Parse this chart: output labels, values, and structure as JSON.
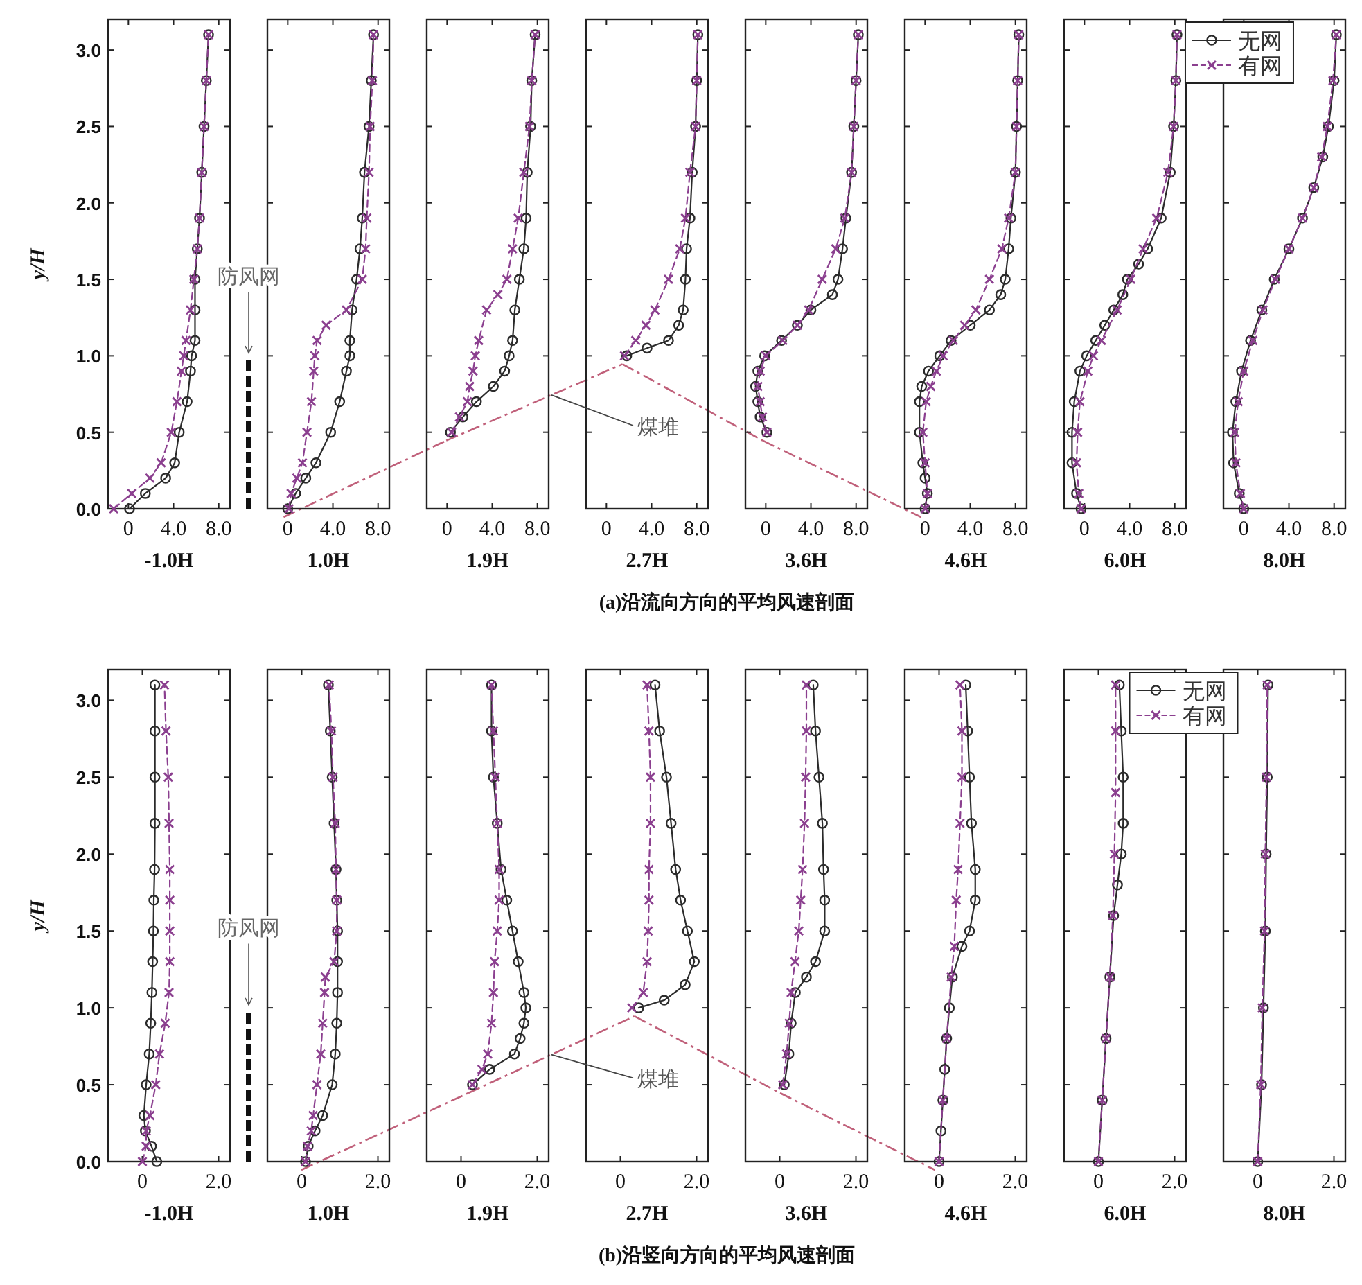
{
  "chart_data": [
    {
      "type": "line",
      "xlabel": "-1.0H",
      "ylabel": "y/H",
      "xlim": [
        -1.8,
        9.0
      ],
      "xticks": [
        {
          "value": 0,
          "label": "0"
        },
        {
          "value": 4,
          "label": "4.0"
        },
        {
          "value": 8,
          "label": "8.0"
        }
      ],
      "ylim": [
        0,
        3.2
      ],
      "yticks": [
        {
          "value": 0,
          "label": "0.0"
        },
        {
          "value": 0.5,
          "label": "0.5"
        },
        {
          "value": 1,
          "label": "1.0"
        },
        {
          "value": 1.5,
          "label": "1.5"
        },
        {
          "value": 2,
          "label": "2.0"
        },
        {
          "value": 2.5,
          "label": "2.5"
        },
        {
          "value": 3,
          "label": "3.0"
        }
      ],
      "annotations": [
        "(a)沿流向方向的平均风速剖面",
        "防风网"
      ],
      "series": [
        {
          "color": "#2b2b2b",
          "marker": "circle",
          "line_style": "solid",
          "x": [
            0.1,
            1.5,
            3.3,
            4.1,
            4.5,
            5.2,
            5.5,
            5.6,
            5.9,
            5.9,
            5.9,
            6.1,
            6.3,
            6.5,
            6.7,
            6.9,
            7.1
          ],
          "values": [
            0,
            0.1,
            0.2,
            0.3,
            0.5,
            0.7,
            0.9,
            1.0,
            1.1,
            1.3,
            1.5,
            1.7,
            1.9,
            2.2,
            2.5,
            2.8,
            3.1
          ]
        },
        {
          "color": "#8b3f8f",
          "marker": "cross",
          "line_style": "dashed",
          "x": [
            -1.3,
            0.3,
            1.9,
            2.9,
            3.8,
            4.3,
            4.7,
            4.9,
            5.1,
            5.5,
            5.8,
            6.1,
            6.3,
            6.5,
            6.7,
            6.9,
            7.1
          ],
          "values": [
            0,
            0.1,
            0.2,
            0.3,
            0.5,
            0.7,
            0.9,
            1.0,
            1.1,
            1.3,
            1.5,
            1.7,
            1.9,
            2.2,
            2.5,
            2.8,
            3.1
          ]
        }
      ]
    },
    {
      "type": "line",
      "xlabel": "1.0H",
      "tick_labels": "x",
      "xlim": [
        -1.8,
        9.0
      ],
      "xticks": [
        {
          "value": 0,
          "label": "0"
        },
        {
          "value": 4,
          "label": "4.0"
        },
        {
          "value": 8,
          "label": "8.0"
        }
      ],
      "ylim": [
        0,
        3.2
      ],
      "yticks": [
        0,
        0.5,
        1,
        1.5,
        2,
        2.5,
        3
      ],
      "series": [
        {
          "color": "#2b2b2b",
          "marker": "circle",
          "line_style": "solid",
          "x": [
            0,
            0.7,
            1.6,
            2.5,
            3.8,
            4.6,
            5.2,
            5.5,
            5.5,
            5.7,
            6.1,
            6.4,
            6.6,
            6.8,
            7.2,
            7.4,
            7.6
          ],
          "values": [
            0,
            0.1,
            0.2,
            0.3,
            0.5,
            0.7,
            0.9,
            1.0,
            1.1,
            1.3,
            1.5,
            1.7,
            1.9,
            2.2,
            2.5,
            2.8,
            3.1
          ]
        },
        {
          "color": "#8b3f8f",
          "marker": "cross",
          "line_style": "dashed",
          "x": [
            0.1,
            0.3,
            0.8,
            1.3,
            1.7,
            2.1,
            2.3,
            2.4,
            2.6,
            3.4,
            5.2,
            6.6,
            6.9,
            7.0,
            7.2,
            7.3,
            7.5,
            7.6
          ],
          "values": [
            0,
            0.1,
            0.2,
            0.3,
            0.5,
            0.7,
            0.9,
            1.0,
            1.1,
            1.2,
            1.3,
            1.5,
            1.7,
            1.9,
            2.2,
            2.5,
            2.8,
            3.1
          ]
        }
      ]
    },
    {
      "type": "line",
      "xlabel": "1.9H",
      "tick_labels": "x",
      "xlim": [
        -1.8,
        9.0
      ],
      "xticks": [
        {
          "value": 0,
          "label": "0"
        },
        {
          "value": 4,
          "label": "4.0"
        },
        {
          "value": 8,
          "label": "8.0"
        }
      ],
      "ylim": [
        0,
        3.2
      ],
      "yticks": [
        0,
        0.5,
        1,
        1.5,
        2,
        2.5,
        3
      ],
      "series": [
        {
          "color": "#2b2b2b",
          "marker": "circle",
          "line_style": "solid",
          "x": [
            0.3,
            1.4,
            2.6,
            4.1,
            5.1,
            5.5,
            5.8,
            6.0,
            6.4,
            6.8,
            7.0,
            7.1,
            7.4,
            7.5,
            7.8
          ],
          "values": [
            0.5,
            0.6,
            0.7,
            0.8,
            0.9,
            1.0,
            1.1,
            1.3,
            1.5,
            1.7,
            1.9,
            2.2,
            2.5,
            2.8,
            3.1
          ]
        },
        {
          "color": "#8b3f8f",
          "marker": "cross",
          "line_style": "dashed",
          "x": [
            0.4,
            1.1,
            1.8,
            2.0,
            2.3,
            2.5,
            2.8,
            3.5,
            4.5,
            5.3,
            5.8,
            6.3,
            6.8,
            7.3,
            7.5,
            7.8
          ],
          "values": [
            0.5,
            0.6,
            0.7,
            0.8,
            0.9,
            1.0,
            1.1,
            1.3,
            1.4,
            1.5,
            1.7,
            1.9,
            2.2,
            2.5,
            2.8,
            3.1
          ]
        }
      ]
    },
    {
      "type": "line",
      "xlabel": "2.7H",
      "tick_labels": "x",
      "xlim": [
        -1.8,
        9.0
      ],
      "xticks": [
        {
          "value": 0,
          "label": "0"
        },
        {
          "value": 4,
          "label": "4.0"
        },
        {
          "value": 8,
          "label": "8.0"
        }
      ],
      "ylim": [
        0,
        3.2
      ],
      "yticks": [
        0,
        0.5,
        1,
        1.5,
        2,
        2.5,
        3
      ],
      "annotations": [
        "煤堆"
      ],
      "series": [
        {
          "color": "#2b2b2b",
          "marker": "circle",
          "line_style": "solid",
          "x": [
            1.8,
            3.6,
            5.5,
            6.4,
            6.8,
            7.0,
            7.1,
            7.4,
            7.6,
            7.9,
            8.0,
            8.1
          ],
          "values": [
            1.0,
            1.05,
            1.1,
            1.2,
            1.3,
            1.5,
            1.7,
            1.9,
            2.2,
            2.5,
            2.8,
            3.1
          ]
        },
        {
          "color": "#8b3f8f",
          "marker": "cross",
          "line_style": "dashed",
          "x": [
            1.6,
            2.6,
            3.5,
            4.3,
            5.5,
            6.5,
            7.0,
            7.4,
            7.9,
            8.0,
            8.1
          ],
          "values": [
            1.0,
            1.1,
            1.2,
            1.3,
            1.5,
            1.7,
            1.9,
            2.2,
            2.5,
            2.8,
            3.1
          ]
        }
      ]
    },
    {
      "type": "line",
      "xlabel": "3.6H",
      "tick_labels": "x",
      "xlim": [
        -1.8,
        9.0
      ],
      "xticks": [
        {
          "value": 0,
          "label": "0"
        },
        {
          "value": 4,
          "label": "4.0"
        },
        {
          "value": 8,
          "label": "8.0"
        }
      ],
      "ylim": [
        0,
        3.2
      ],
      "yticks": [
        0,
        0.5,
        1,
        1.5,
        2,
        2.5,
        3
      ],
      "series": [
        {
          "color": "#2b2b2b",
          "marker": "circle",
          "line_style": "solid",
          "x": [
            0.1,
            -0.5,
            -0.7,
            -0.9,
            -0.7,
            -0.1,
            1.4,
            2.8,
            4.0,
            5.9,
            6.4,
            6.8,
            7.1,
            7.6,
            7.8,
            8.0,
            8.2
          ],
          "values": [
            0.5,
            0.6,
            0.7,
            0.8,
            0.9,
            1.0,
            1.1,
            1.2,
            1.3,
            1.4,
            1.5,
            1.7,
            1.9,
            2.2,
            2.5,
            2.8,
            3.1
          ]
        },
        {
          "color": "#8b3f8f",
          "marker": "cross",
          "line_style": "dashed",
          "x": [
            0.1,
            -0.3,
            -0.5,
            -0.7,
            -0.5,
            0.0,
            1.5,
            2.8,
            3.8,
            5.0,
            6.2,
            7.0,
            7.6,
            7.8,
            8.0,
            8.2
          ],
          "values": [
            0.5,
            0.6,
            0.7,
            0.8,
            0.9,
            1.0,
            1.1,
            1.2,
            1.3,
            1.5,
            1.7,
            1.9,
            2.2,
            2.5,
            2.8,
            3.1
          ]
        }
      ]
    },
    {
      "type": "line",
      "xlabel": "4.6H",
      "tick_labels": "x",
      "xlim": [
        -1.8,
        9.0
      ],
      "xticks": [
        {
          "value": 0,
          "label": "0"
        },
        {
          "value": 4,
          "label": "4.0"
        },
        {
          "value": 8,
          "label": "8.0"
        }
      ],
      "ylim": [
        0,
        3.2
      ],
      "yticks": [
        0,
        0.5,
        1,
        1.5,
        2,
        2.5,
        3
      ],
      "series": [
        {
          "color": "#2b2b2b",
          "marker": "circle",
          "line_style": "solid",
          "x": [
            0,
            0.2,
            0.0,
            -0.2,
            -0.5,
            -0.5,
            -0.3,
            0.3,
            1.3,
            2.3,
            4.0,
            5.7,
            6.7,
            7.1,
            7.4,
            7.6,
            8.0,
            8.1,
            8.2,
            8.3
          ],
          "values": [
            0,
            0.1,
            0.2,
            0.3,
            0.5,
            0.7,
            0.8,
            0.9,
            1.0,
            1.1,
            1.2,
            1.3,
            1.4,
            1.5,
            1.7,
            1.9,
            2.2,
            2.5,
            2.8,
            3.1
          ]
        },
        {
          "color": "#8b3f8f",
          "marker": "cross",
          "line_style": "dashed",
          "x": [
            0,
            0.2,
            0.0,
            -0.2,
            0.1,
            0.5,
            1.0,
            1.6,
            2.5,
            3.5,
            4.5,
            5.7,
            6.8,
            7.4,
            8.0,
            8.1,
            8.2,
            8.3
          ],
          "values": [
            0,
            0.1,
            0.3,
            0.5,
            0.7,
            0.8,
            0.9,
            1.0,
            1.1,
            1.2,
            1.3,
            1.5,
            1.7,
            1.9,
            2.2,
            2.5,
            2.8,
            3.1
          ]
        }
      ]
    },
    {
      "type": "line",
      "xlabel": "6.0H",
      "tick_labels": "x",
      "legend": "top right",
      "xlim": [
        -1.8,
        9.0
      ],
      "xticks": [
        {
          "value": 0,
          "label": "0"
        },
        {
          "value": 4,
          "label": "4.0"
        },
        {
          "value": 8,
          "label": "8.0"
        }
      ],
      "ylim": [
        0,
        3.2
      ],
      "yticks": [
        0,
        0.5,
        1,
        1.5,
        2,
        2.5,
        3
      ],
      "series": [
        {
          "name": "无网",
          "color": "#2b2b2b",
          "marker": "circle",
          "line_style": "solid",
          "x": [
            -0.3,
            -0.7,
            -1.1,
            -1.1,
            -0.9,
            -0.4,
            0.2,
            1.0,
            1.8,
            2.6,
            3.4,
            3.8,
            4.8,
            5.6,
            6.8,
            7.6,
            7.9,
            8.1,
            8.2
          ],
          "values": [
            0,
            0.1,
            0.3,
            0.5,
            0.7,
            0.9,
            1.0,
            1.1,
            1.2,
            1.3,
            1.4,
            1.5,
            1.6,
            1.7,
            1.9,
            2.2,
            2.5,
            2.8,
            3.1
          ]
        },
        {
          "name": "有网",
          "color": "#8b3f8f",
          "marker": "cross",
          "line_style": "dashed",
          "x": [
            -0.3,
            -0.5,
            -0.7,
            -0.6,
            -0.4,
            0.3,
            0.8,
            1.5,
            2.9,
            4.1,
            5.2,
            6.4,
            7.4,
            7.9,
            8.1,
            8.2
          ],
          "values": [
            0,
            0.1,
            0.3,
            0.5,
            0.7,
            0.9,
            1.0,
            1.1,
            1.3,
            1.5,
            1.7,
            1.9,
            2.2,
            2.5,
            2.8,
            3.1
          ]
        }
      ]
    },
    {
      "type": "line",
      "xlabel": "8.0H",
      "tick_labels": "x",
      "xlim": [
        -1.8,
        9.0
      ],
      "xticks": [
        {
          "value": 0,
          "label": "0"
        },
        {
          "value": 4,
          "label": "4.0"
        },
        {
          "value": 8,
          "label": "8.0"
        }
      ],
      "ylim": [
        0,
        3.2
      ],
      "yticks": [
        0,
        0.5,
        1,
        1.5,
        2,
        2.5,
        3
      ],
      "series": [
        {
          "color": "#2b2b2b",
          "marker": "circle",
          "line_style": "solid",
          "x": [
            0,
            -0.4,
            -0.9,
            -1.0,
            -0.7,
            -0.2,
            0.6,
            1.6,
            2.7,
            4.0,
            5.2,
            6.2,
            7.0,
            7.5,
            8.0,
            8.2
          ],
          "values": [
            0,
            0.1,
            0.3,
            0.5,
            0.7,
            0.9,
            1.1,
            1.3,
            1.5,
            1.7,
            1.9,
            2.1,
            2.3,
            2.5,
            2.8,
            3.1
          ]
        },
        {
          "color": "#8b3f8f",
          "marker": "cross",
          "line_style": "dashed",
          "x": [
            0,
            -0.3,
            -0.7,
            -0.8,
            -0.5,
            0.0,
            0.8,
            1.7,
            2.8,
            4.0,
            5.2,
            6.2,
            6.9,
            7.4,
            7.9,
            8.2
          ],
          "values": [
            0,
            0.1,
            0.3,
            0.5,
            0.7,
            0.9,
            1.1,
            1.3,
            1.5,
            1.7,
            1.9,
            2.1,
            2.3,
            2.5,
            2.8,
            3.1
          ]
        }
      ]
    },
    {
      "type": "line",
      "xlabel": "-1.0H",
      "ylabel": "y/H",
      "xlim": [
        -0.9,
        2.3
      ],
      "xticks": [
        {
          "value": 0,
          "label": "0"
        },
        {
          "value": 2,
          "label": "2.0"
        }
      ],
      "ylim": [
        0,
        3.2
      ],
      "yticks": [
        {
          "value": 0,
          "label": "0.0"
        },
        {
          "value": 0.5,
          "label": "0.5"
        },
        {
          "value": 1,
          "label": "1.0"
        },
        {
          "value": 1.5,
          "label": "1.5"
        },
        {
          "value": 2,
          "label": "2.0"
        },
        {
          "value": 2.5,
          "label": "2.5"
        },
        {
          "value": 3,
          "label": "3.0"
        }
      ],
      "annotations": [
        "(b)沿竖向方向的平均风速剖面",
        "防风网"
      ],
      "series": [
        {
          "color": "#2b2b2b",
          "marker": "circle",
          "line_style": "solid",
          "x": [
            0.38,
            0.24,
            0.08,
            0.04,
            0.1,
            0.18,
            0.22,
            0.25,
            0.27,
            0.29,
            0.3,
            0.32,
            0.33,
            0.33,
            0.33,
            0.33
          ],
          "values": [
            0,
            0.1,
            0.2,
            0.3,
            0.5,
            0.7,
            0.9,
            1.1,
            1.3,
            1.5,
            1.7,
            1.9,
            2.2,
            2.5,
            2.8,
            3.1
          ]
        },
        {
          "color": "#8b3f8f",
          "marker": "cross",
          "line_style": "dashed",
          "x": [
            0.0,
            0.1,
            0.1,
            0.2,
            0.35,
            0.45,
            0.6,
            0.7,
            0.72,
            0.72,
            0.72,
            0.72,
            0.7,
            0.68,
            0.62,
            0.58
          ],
          "values": [
            0,
            0.1,
            0.2,
            0.3,
            0.5,
            0.7,
            0.9,
            1.1,
            1.3,
            1.5,
            1.7,
            1.9,
            2.2,
            2.5,
            2.8,
            3.1
          ]
        }
      ]
    },
    {
      "type": "line",
      "xlabel": "1.0H",
      "tick_labels": "x",
      "xlim": [
        -0.9,
        2.3
      ],
      "xticks": [
        {
          "value": 0,
          "label": "0"
        },
        {
          "value": 2,
          "label": "2.0"
        }
      ],
      "ylim": [
        0,
        3.2
      ],
      "yticks": [
        0,
        0.5,
        1,
        1.5,
        2,
        2.5,
        3
      ],
      "series": [
        {
          "color": "#2b2b2b",
          "marker": "circle",
          "line_style": "solid",
          "x": [
            0.1,
            0.17,
            0.35,
            0.55,
            0.8,
            0.88,
            0.92,
            0.94,
            0.94,
            0.94,
            0.92,
            0.9,
            0.85,
            0.8,
            0.75,
            0.7
          ],
          "values": [
            0,
            0.1,
            0.2,
            0.3,
            0.5,
            0.7,
            0.9,
            1.1,
            1.3,
            1.5,
            1.7,
            1.9,
            2.2,
            2.5,
            2.8,
            3.1
          ]
        },
        {
          "color": "#8b3f8f",
          "marker": "cross",
          "line_style": "dashed",
          "x": [
            0.1,
            0.15,
            0.25,
            0.3,
            0.4,
            0.5,
            0.55,
            0.6,
            0.62,
            0.85,
            0.92,
            0.92,
            0.9,
            0.88,
            0.82,
            0.78,
            0.72
          ],
          "values": [
            0,
            0.1,
            0.2,
            0.3,
            0.5,
            0.7,
            0.9,
            1.1,
            1.2,
            1.3,
            1.5,
            1.7,
            1.9,
            2.2,
            2.5,
            2.8,
            3.1
          ]
        }
      ]
    },
    {
      "type": "line",
      "xlabel": "1.9H",
      "tick_labels": "x",
      "xlim": [
        -0.9,
        2.3
      ],
      "xticks": [
        {
          "value": 0,
          "label": "0"
        },
        {
          "value": 2,
          "label": "2.0"
        }
      ],
      "ylim": [
        0,
        3.2
      ],
      "yticks": [
        0,
        0.5,
        1,
        1.5,
        2,
        2.5,
        3
      ],
      "series": [
        {
          "color": "#2b2b2b",
          "marker": "circle",
          "line_style": "solid",
          "x": [
            0.3,
            0.75,
            1.4,
            1.55,
            1.65,
            1.7,
            1.65,
            1.5,
            1.35,
            1.2,
            1.05,
            0.95,
            0.85,
            0.8,
            0.8
          ],
          "values": [
            0.5,
            0.6,
            0.7,
            0.8,
            0.9,
            1.0,
            1.1,
            1.3,
            1.5,
            1.7,
            1.9,
            2.2,
            2.5,
            2.8,
            3.1
          ]
        },
        {
          "color": "#8b3f8f",
          "marker": "cross",
          "line_style": "dashed",
          "x": [
            0.3,
            0.55,
            0.7,
            0.8,
            0.85,
            0.88,
            0.95,
            1.0,
            1.0,
            0.95,
            0.9,
            0.85,
            0.8
          ],
          "values": [
            0.5,
            0.6,
            0.7,
            0.9,
            1.1,
            1.3,
            1.5,
            1.7,
            1.9,
            2.2,
            2.5,
            2.8,
            3.1
          ]
        }
      ]
    },
    {
      "type": "line",
      "xlabel": "2.7H",
      "tick_labels": "x",
      "xlim": [
        -0.9,
        2.3
      ],
      "xticks": [
        {
          "value": 0,
          "label": "0"
        },
        {
          "value": 2,
          "label": "2.0"
        }
      ],
      "ylim": [
        0,
        3.2
      ],
      "yticks": [
        0,
        0.5,
        1,
        1.5,
        2,
        2.5,
        3
      ],
      "annotations": [
        "煤堆"
      ],
      "series": [
        {
          "color": "#2b2b2b",
          "marker": "circle",
          "line_style": "solid",
          "x": [
            0.48,
            1.15,
            1.7,
            1.94,
            1.76,
            1.58,
            1.45,
            1.33,
            1.21,
            1.03,
            0.91
          ],
          "values": [
            1.0,
            1.05,
            1.15,
            1.3,
            1.5,
            1.7,
            1.9,
            2.2,
            2.5,
            2.8,
            3.1
          ]
        },
        {
          "color": "#8b3f8f",
          "marker": "cross",
          "line_style": "dashed",
          "x": [
            0.3,
            0.6,
            0.7,
            0.73,
            0.75,
            0.75,
            0.79,
            0.79,
            0.75,
            0.7
          ],
          "values": [
            1.0,
            1.1,
            1.3,
            1.5,
            1.7,
            1.9,
            2.2,
            2.5,
            2.8,
            3.1
          ]
        }
      ]
    },
    {
      "type": "line",
      "xlabel": "3.6H",
      "tick_labels": "x",
      "xlim": [
        -0.9,
        2.3
      ],
      "xticks": [
        {
          "value": 0,
          "label": "0"
        },
        {
          "value": 2,
          "label": "2.0"
        }
      ],
      "ylim": [
        0,
        3.2
      ],
      "yticks": [
        0,
        0.5,
        1,
        1.5,
        2,
        2.5,
        3
      ],
      "series": [
        {
          "color": "#2b2b2b",
          "marker": "circle",
          "line_style": "solid",
          "x": [
            0.12,
            0.24,
            0.3,
            0.41,
            0.7,
            0.94,
            1.18,
            1.18,
            1.15,
            1.12,
            1.03,
            0.94,
            0.88
          ],
          "values": [
            0.5,
            0.7,
            0.9,
            1.1,
            1.2,
            1.3,
            1.5,
            1.7,
            1.9,
            2.2,
            2.5,
            2.8,
            3.1
          ]
        },
        {
          "color": "#8b3f8f",
          "marker": "cross",
          "line_style": "dashed",
          "x": [
            0.08,
            0.18,
            0.25,
            0.3,
            0.4,
            0.5,
            0.55,
            0.6,
            0.65,
            0.68,
            0.7,
            0.7
          ],
          "values": [
            0.5,
            0.7,
            0.9,
            1.1,
            1.3,
            1.5,
            1.7,
            1.9,
            2.2,
            2.5,
            2.8,
            3.1
          ]
        }
      ]
    },
    {
      "type": "line",
      "xlabel": "4.6H",
      "tick_labels": "x",
      "xlim": [
        -0.9,
        2.3
      ],
      "xticks": [
        {
          "value": 0,
          "label": "0"
        },
        {
          "value": 2,
          "label": "2.0"
        }
      ],
      "ylim": [
        0,
        3.2
      ],
      "yticks": [
        0,
        0.5,
        1,
        1.5,
        2,
        2.5,
        3
      ],
      "series": [
        {
          "color": "#2b2b2b",
          "marker": "circle",
          "line_style": "solid",
          "x": [
            0,
            0.05,
            0.1,
            0.15,
            0.2,
            0.27,
            0.35,
            0.6,
            0.8,
            0.95,
            0.95,
            0.85,
            0.8,
            0.75,
            0.7
          ],
          "values": [
            0,
            0.2,
            0.4,
            0.6,
            0.8,
            1.0,
            1.2,
            1.4,
            1.5,
            1.7,
            1.9,
            2.2,
            2.5,
            2.8,
            3.1
          ]
        },
        {
          "color": "#8b3f8f",
          "marker": "cross",
          "line_style": "dashed",
          "x": [
            0,
            0.1,
            0.2,
            0.32,
            0.4,
            0.45,
            0.5,
            0.55,
            0.6,
            0.6,
            0.55
          ],
          "values": [
            0,
            0.4,
            0.8,
            1.2,
            1.4,
            1.7,
            1.9,
            2.2,
            2.5,
            2.8,
            3.1
          ]
        }
      ]
    },
    {
      "type": "line",
      "xlabel": "6.0H",
      "tick_labels": "x",
      "legend": "top right",
      "xlim": [
        -0.9,
        2.3
      ],
      "xticks": [
        {
          "value": 0,
          "label": "0"
        },
        {
          "value": 2,
          "label": "2.0"
        }
      ],
      "ylim": [
        0,
        3.2
      ],
      "yticks": [
        0,
        0.5,
        1,
        1.5,
        2,
        2.5,
        3
      ],
      "series": [
        {
          "name": "无网",
          "color": "#2b2b2b",
          "marker": "circle",
          "line_style": "solid",
          "x": [
            0,
            0.1,
            0.2,
            0.3,
            0.4,
            0.5,
            0.6,
            0.65,
            0.65,
            0.6,
            0.55
          ],
          "values": [
            0,
            0.4,
            0.8,
            1.2,
            1.6,
            1.8,
            2.0,
            2.2,
            2.5,
            2.8,
            3.1
          ]
        },
        {
          "name": "有网",
          "color": "#8b3f8f",
          "marker": "cross",
          "line_style": "dashed",
          "x": [
            0,
            0.1,
            0.2,
            0.3,
            0.38,
            0.42,
            0.45,
            0.45,
            0.45
          ],
          "values": [
            0,
            0.4,
            0.8,
            1.2,
            1.6,
            2.0,
            2.4,
            2.8,
            3.1
          ]
        }
      ]
    },
    {
      "type": "line",
      "xlabel": "8.0H",
      "tick_labels": "x",
      "xlim": [
        -0.9,
        2.3
      ],
      "xticks": [
        {
          "value": 0,
          "label": "0"
        },
        {
          "value": 2,
          "label": "2.0"
        }
      ],
      "ylim": [
        0,
        3.2
      ],
      "yticks": [
        0,
        0.5,
        1,
        1.5,
        2,
        2.5,
        3
      ],
      "series": [
        {
          "color": "#2b2b2b",
          "marker": "circle",
          "line_style": "solid",
          "x": [
            0,
            0.1,
            0.15,
            0.2,
            0.22,
            0.25,
            0.27
          ],
          "values": [
            0,
            0.5,
            1.0,
            1.5,
            2.0,
            2.5,
            3.1
          ]
        },
        {
          "color": "#8b3f8f",
          "marker": "cross",
          "line_style": "dashed",
          "x": [
            0,
            0.08,
            0.12,
            0.18,
            0.2,
            0.23,
            0.25
          ],
          "values": [
            0,
            0.5,
            1.0,
            1.5,
            2.0,
            2.5,
            3.1
          ]
        }
      ]
    }
  ]
}
